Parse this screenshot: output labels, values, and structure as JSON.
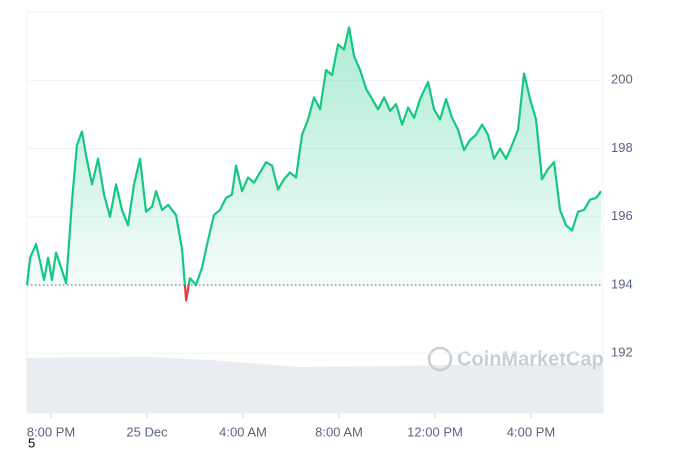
{
  "chart_data": {
    "type": "line",
    "x": [
      19.0,
      19.13,
      19.38,
      19.54,
      19.71,
      19.88,
      20.04,
      20.21,
      20.38,
      20.63,
      20.88,
      21.08,
      21.29,
      21.46,
      21.71,
      21.96,
      22.21,
      22.46,
      22.71,
      22.96,
      23.21,
      23.46,
      23.71,
      23.96,
      24.21,
      24.38,
      24.63,
      24.88,
      25.21,
      25.46,
      25.63,
      25.79,
      26.04,
      26.29,
      26.54,
      26.79,
      27.04,
      27.29,
      27.54,
      27.71,
      27.96,
      28.21,
      28.46,
      28.71,
      28.96,
      29.21,
      29.46,
      29.71,
      29.96,
      30.21,
      30.46,
      30.71,
      30.96,
      31.21,
      31.46,
      31.71,
      31.96,
      32.21,
      32.42,
      32.63,
      32.88,
      33.13,
      33.38,
      33.63,
      33.88,
      34.13,
      34.38,
      34.63,
      34.88,
      35.13,
      35.38,
      35.71,
      35.96,
      36.21,
      36.46,
      36.71,
      36.96,
      37.21,
      37.46,
      37.71,
      37.96,
      38.21,
      38.46,
      38.71,
      38.96,
      39.21,
      39.46,
      39.71,
      39.96,
      40.21,
      40.46,
      40.71,
      40.96,
      41.21,
      41.46,
      41.71,
      41.96,
      42.21,
      42.46,
      42.71,
      42.92
    ],
    "series": [
      {
        "color": "#16c784",
        "down_color": "#ea3943",
        "values": [
          194.0,
          194.8,
          195.2,
          194.7,
          194.15,
          194.8,
          194.15,
          194.95,
          194.6,
          194.05,
          196.5,
          198.1,
          198.5,
          197.8,
          196.95,
          197.7,
          196.65,
          196.0,
          196.95,
          196.2,
          195.75,
          196.95,
          197.7,
          196.15,
          196.3,
          196.75,
          196.2,
          196.35,
          196.05,
          195.05,
          193.55,
          194.2,
          194.0,
          194.5,
          195.3,
          196.05,
          196.2,
          196.55,
          196.65,
          197.5,
          196.75,
          197.15,
          197.0,
          197.3,
          197.6,
          197.5,
          196.8,
          197.1,
          197.3,
          197.15,
          198.4,
          198.85,
          199.5,
          199.15,
          200.3,
          200.15,
          201.05,
          200.9,
          201.55,
          200.7,
          200.3,
          199.75,
          199.45,
          199.15,
          199.5,
          199.1,
          199.3,
          198.7,
          199.2,
          198.9,
          199.45,
          199.95,
          199.15,
          198.85,
          199.45,
          198.9,
          198.55,
          197.95,
          198.25,
          198.4,
          198.7,
          198.4,
          197.7,
          198.0,
          197.7,
          198.1,
          198.55,
          200.2,
          199.45,
          198.85,
          197.1,
          197.4,
          197.6,
          196.2,
          195.75,
          195.6,
          196.15,
          196.2,
          196.5,
          196.55,
          196.75
        ]
      }
    ],
    "baseline": 194,
    "xlim": [
      19,
      43
    ],
    "xticks": [
      {
        "value": 20,
        "label": "8:00 PM"
      },
      {
        "value": 24,
        "label": "25 Dec"
      },
      {
        "value": 28,
        "label": "4:00 AM"
      },
      {
        "value": 32,
        "label": "8:00 AM"
      },
      {
        "value": 36,
        "label": "12:00 PM"
      },
      {
        "value": 40,
        "label": "4:00 PM"
      }
    ],
    "ylim": [
      190.25,
      202
    ],
    "yticks": [
      192,
      194,
      196,
      198,
      200
    ],
    "grid": true,
    "watermark": "CoinMarketCap",
    "note": "5"
  }
}
